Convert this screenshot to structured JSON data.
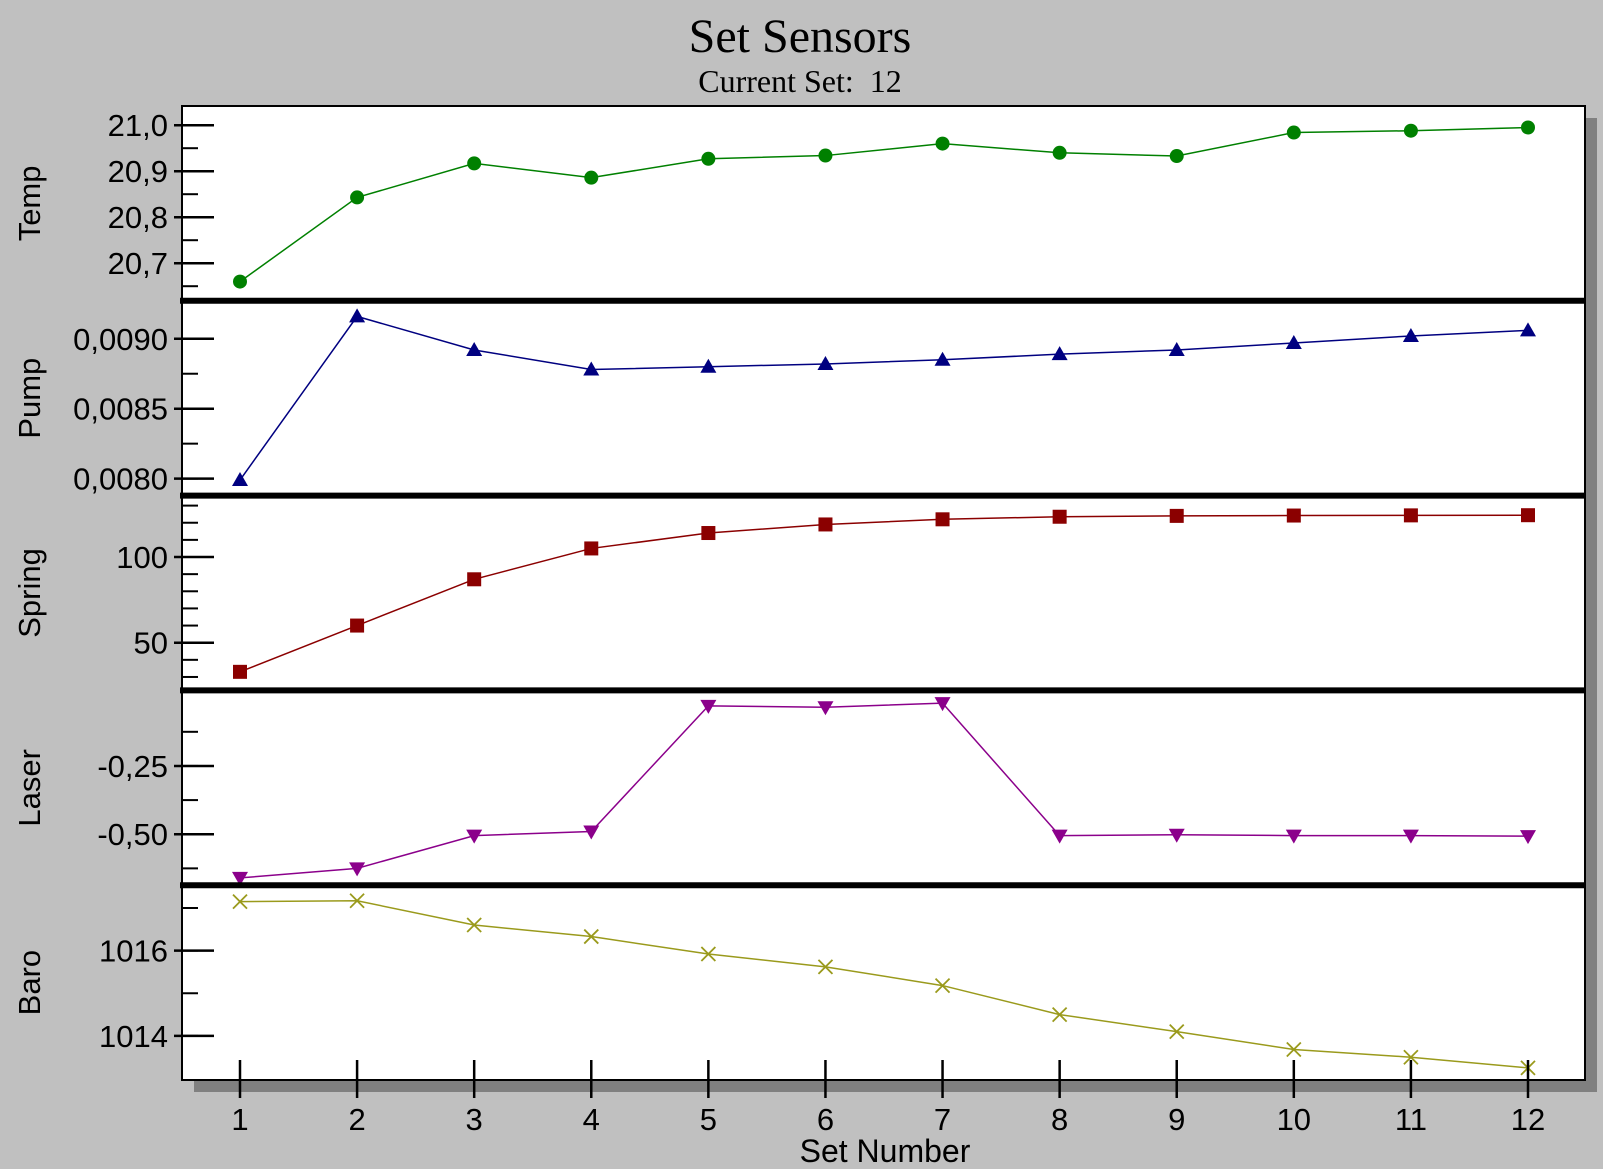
{
  "chart_data": {
    "type": "line",
    "title": "Set Sensors",
    "subtitle": "Current Set:  12",
    "xlabel": "Set Number",
    "x": [
      1,
      2,
      3,
      4,
      5,
      6,
      7,
      8,
      9,
      10,
      11,
      12
    ],
    "x_tick_labels": [
      "1",
      "2",
      "3",
      "4",
      "5",
      "6",
      "7",
      "8",
      "9",
      "10",
      "11",
      "12"
    ],
    "grid": false,
    "panels": [
      {
        "name": "Temp",
        "ylabel": "Temp",
        "ylim": [
          20.64,
          21.02
        ],
        "ticks": [
          20.7,
          20.8,
          20.9,
          21.0
        ],
        "tick_labels": [
          "20,7",
          "20,8",
          "20,9",
          "21,0"
        ],
        "minor_step": 0.05,
        "color": "#008000",
        "marker": "circle",
        "values": [
          20.66,
          20.843,
          20.917,
          20.886,
          20.927,
          20.934,
          20.96,
          20.94,
          20.933,
          20.984,
          20.988,
          20.995
        ]
      },
      {
        "name": "Pump",
        "ylabel": "Pump",
        "ylim": [
          0.00795,
          0.0092
        ],
        "ticks": [
          0.008,
          0.0085,
          0.009
        ],
        "tick_labels": [
          "0,0080",
          "0,0085",
          "0,0090"
        ],
        "minor_step": 0.00025,
        "color": "#000080",
        "marker": "triangle-up",
        "values": [
          0.00799,
          0.00916,
          0.00892,
          0.00878,
          0.0088,
          0.00882,
          0.00885,
          0.00889,
          0.00892,
          0.00897,
          0.00902,
          0.00906
        ]
      },
      {
        "name": "Spring",
        "ylabel": "Spring",
        "ylim": [
          28,
          130
        ],
        "ticks": [
          50,
          100
        ],
        "tick_labels": [
          "50",
          "100"
        ],
        "minor_step": 10,
        "color": "#8b0000",
        "marker": "square",
        "values": [
          33,
          60,
          87,
          105,
          114,
          119,
          122,
          123.5,
          124,
          124.2,
          124.3,
          124.4
        ]
      },
      {
        "name": "Laser",
        "ylabel": "Laser",
        "ylim": [
          -0.65,
          -0.01
        ],
        "ticks": [
          -0.5,
          -0.25
        ],
        "tick_labels": [
          "-0,50",
          "-0,25"
        ],
        "minor_step": 0.125,
        "color": "#8b008b",
        "marker": "triangle-down",
        "values": [
          -0.66,
          -0.625,
          -0.505,
          -0.49,
          -0.03,
          -0.035,
          -0.02,
          -0.505,
          -0.502,
          -0.505,
          -0.505,
          -0.507
        ]
      },
      {
        "name": "Baro",
        "ylabel": "Baro",
        "ylim": [
          1013.2,
          1017.3
        ],
        "ticks": [
          1014,
          1016
        ],
        "tick_labels": [
          "1014",
          "1016"
        ],
        "minor_step": 1,
        "color": "#9a9a1c",
        "marker": "x",
        "values": [
          1017.15,
          1017.17,
          1016.6,
          1016.33,
          1015.92,
          1015.62,
          1015.18,
          1014.5,
          1014.1,
          1013.68,
          1013.5,
          1013.25
        ]
      }
    ]
  }
}
